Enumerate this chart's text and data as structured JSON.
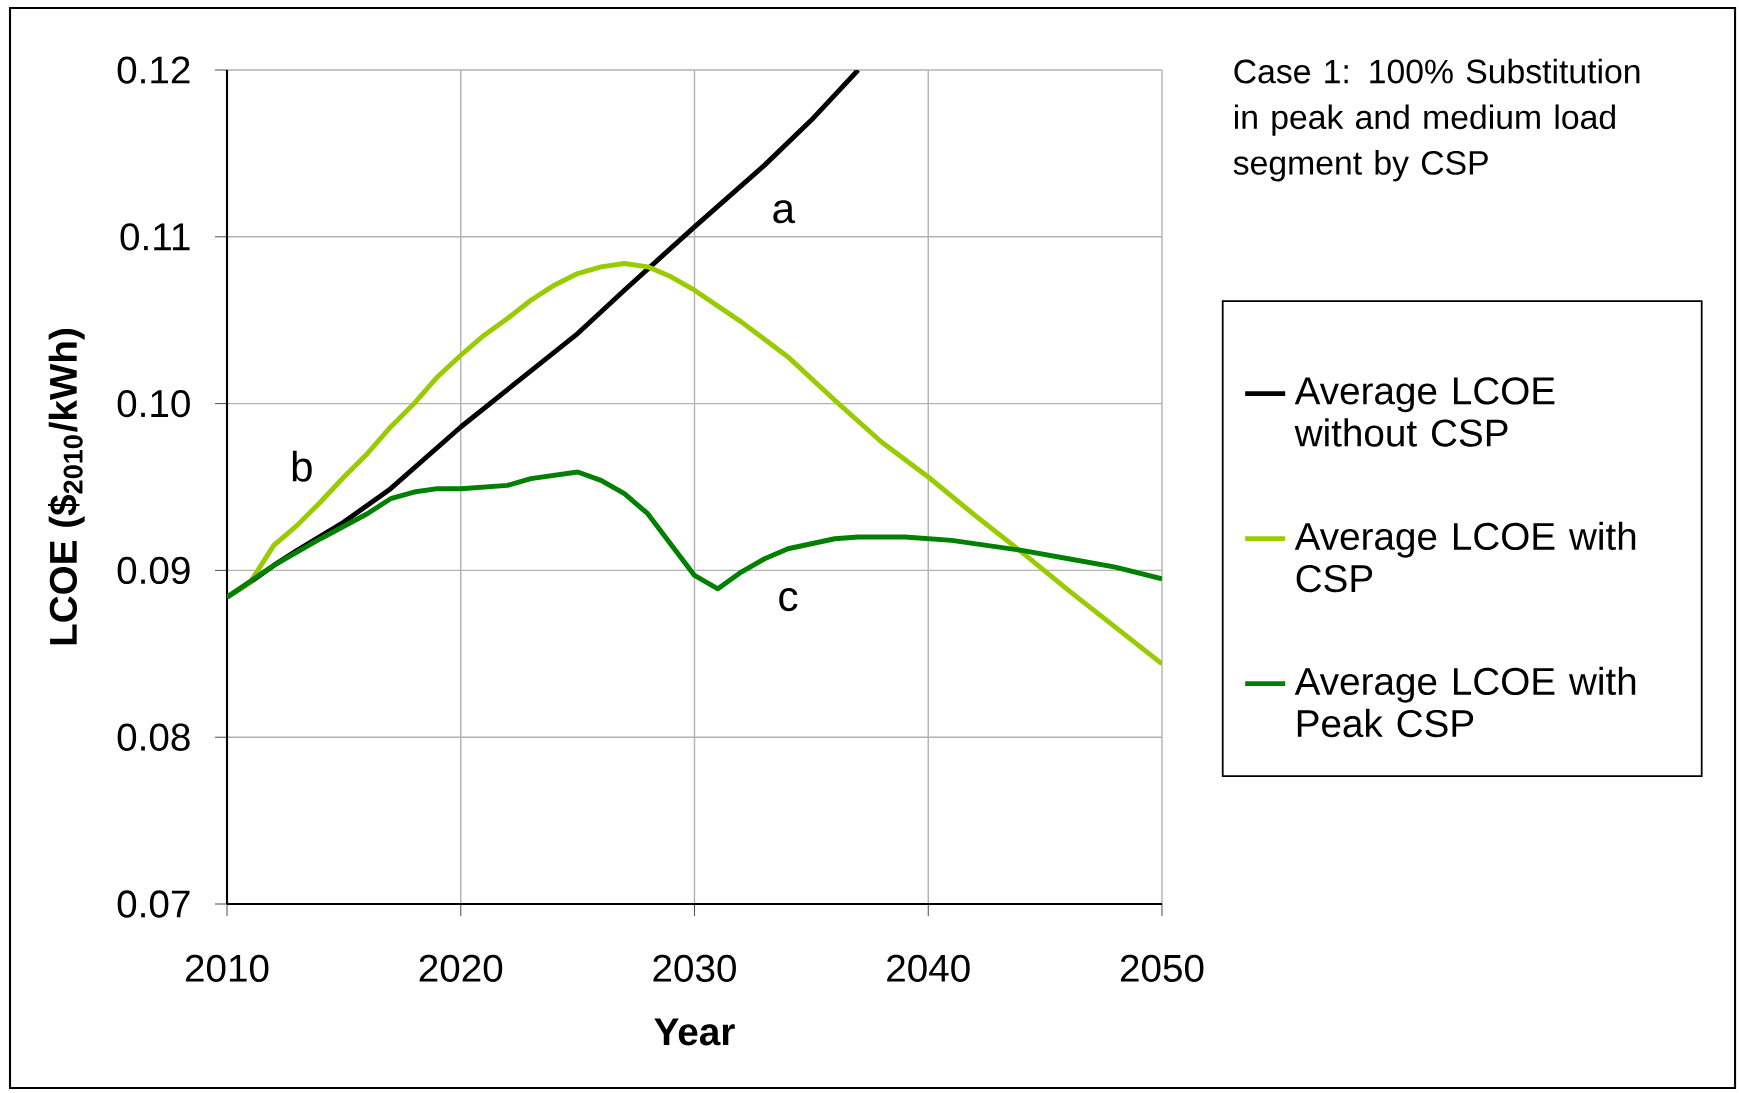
{
  "chart_data": {
    "type": "line",
    "ylabel": "LCOE ($$_{2010}$/kWh)",
    "xlabel": "Year",
    "xlim": [
      2010,
      2050
    ],
    "xticks": [
      2010,
      2020,
      2030,
      2040,
      2050
    ],
    "ylim": [
      0.07,
      0.12
    ],
    "yticks": [
      0.07,
      0.08,
      0.09,
      {
        "value": 0.1,
        "label": "0.10"
      },
      0.11,
      0.12
    ],
    "grid": true,
    "legend": "right",
    "marker": "none",
    "line_style": "solid",
    "series": [
      {
        "name": "Average LCOE without CSP",
        "color": "#000000",
        "x": [
          2010,
          2011,
          2012,
          2013,
          2015,
          2017,
          2020,
          2025,
          2027,
          2030,
          2033,
          2035,
          2037
        ],
        "values": [
          0.0884,
          0.0893,
          0.0903,
          0.0912,
          0.0929,
          0.0949,
          0.0986,
          0.1042,
          0.1068,
          0.1106,
          0.1143,
          0.117,
          0.12
        ]
      },
      {
        "name": "Average LCOE with CSP",
        "color": "#99cc00",
        "x": [
          2010,
          2011,
          2012,
          2013,
          2014,
          2015,
          2016,
          2017,
          2018,
          2019,
          2020,
          2021,
          2022,
          2023,
          2024,
          2025,
          2026,
          2027,
          2028,
          2029,
          2030,
          2032,
          2034,
          2036,
          2038,
          2040,
          2042,
          2044,
          2046,
          2048,
          2050
        ],
        "values": [
          0.0884,
          0.0893,
          0.0915,
          0.0927,
          0.0941,
          0.0956,
          0.097,
          0.0986,
          0.1,
          0.1016,
          0.1029,
          0.1041,
          0.1051,
          0.1062,
          0.1071,
          0.1078,
          0.1082,
          0.1084,
          0.1082,
          0.1076,
          0.1068,
          0.1049,
          0.1028,
          0.1002,
          0.0977,
          0.0956,
          0.0933,
          0.0911,
          0.0888,
          0.0866,
          0.0844
        ]
      },
      {
        "name": "Average LCOE with Peak CSP",
        "color": "#008000",
        "x": [
          2010,
          2012,
          2014,
          2016,
          2017,
          2018,
          2019,
          2020,
          2022,
          2023,
          2025,
          2026,
          2027,
          2028,
          2030,
          2031,
          2032,
          2033,
          2034,
          2036,
          2037,
          2039,
          2041,
          2044,
          2046,
          2048,
          2050
        ],
        "values": [
          0.0884,
          0.0903,
          0.0919,
          0.0934,
          0.0943,
          0.0947,
          0.0949,
          0.0949,
          0.0951,
          0.0955,
          0.0959,
          0.0954,
          0.0946,
          0.0934,
          0.0897,
          0.0889,
          0.0899,
          0.0907,
          0.0913,
          0.0919,
          0.092,
          0.092,
          0.0918,
          0.0912,
          0.0907,
          0.0902,
          0.0895
        ]
      }
    ],
    "annotations": [
      "Case 1: 100% Substitution in peak and medium load segment by CSP",
      "a",
      "b",
      "c"
    ]
  }
}
